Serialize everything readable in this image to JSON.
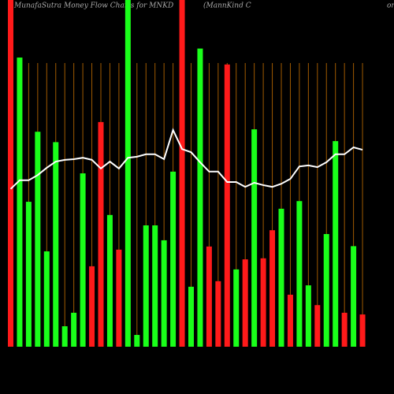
{
  "chart_data": {
    "type": "bar",
    "title": "MunafaSutra  Money Flow  Charts for MNKD",
    "subtitle": "(MannKind C",
    "title_tail": "or",
    "categories": [
      null,
      null,
      null,
      null,
      null,
      null,
      null,
      null,
      null,
      null,
      null,
      null,
      null,
      null,
      null,
      null,
      null,
      null,
      null,
      null,
      null,
      null,
      null,
      null,
      null,
      null,
      null,
      null,
      null,
      null,
      null,
      null,
      null,
      null,
      null,
      null,
      null,
      null,
      null,
      null
    ],
    "values": [
      100,
      83.4,
      41.8,
      62,
      27.5,
      59,
      5.9,
      9.8,
      50,
      23.2,
      64.8,
      38,
      28,
      100,
      3.4,
      35,
      35,
      30.7,
      50.5,
      100,
      17.3,
      86,
      28.9,
      18.9,
      81.4,
      22.3,
      25.2,
      62.7,
      25.5,
      33.6,
      39.8,
      15,
      42,
      17.7,
      12,
      32.5,
      59.3,
      9.8,
      29,
      9.3
    ],
    "colors": [
      "#ff1a1a",
      "#1aff1a",
      "#1aff1a",
      "#1aff1a",
      "#1aff1a",
      "#1aff1a",
      "#1aff1a",
      "#1aff1a",
      "#1aff1a",
      "#ff1a1a",
      "#ff1a1a",
      "#1aff1a",
      "#ff1a1a",
      "#1aff1a",
      "#1aff1a",
      "#1aff1a",
      "#1aff1a",
      "#1aff1a",
      "#1aff1a",
      "#ff1a1a",
      "#1aff1a",
      "#1aff1a",
      "#ff1a1a",
      "#ff1a1a",
      "#ff1a1a",
      "#1aff1a",
      "#ff1a1a",
      "#1aff1a",
      "#ff1a1a",
      "#ff1a1a",
      "#1aff1a",
      "#ff1a1a",
      "#1aff1a",
      "#1aff1a",
      "#ff1a1a",
      "#1aff1a",
      "#1aff1a",
      "#ff1a1a",
      "#1aff1a",
      "#ff1a1a"
    ],
    "line_values": [
      45.5,
      48,
      48,
      49.5,
      51.6,
      53.4,
      53.9,
      54.1,
      54.5,
      53.9,
      51.4,
      53.4,
      51.4,
      54.5,
      54.8,
      55.5,
      55.5,
      54.1,
      62.5,
      57,
      56.1,
      53.2,
      50.5,
      50.5,
      47.5,
      47.5,
      46.1,
      47.3,
      46.6,
      46.1,
      47,
      48.4,
      52,
      52.3,
      51.8,
      53.2,
      55.5,
      55.5,
      57.5,
      56.8
    ],
    "line_color": "#ffffff",
    "ylim": [
      0,
      100
    ]
  }
}
